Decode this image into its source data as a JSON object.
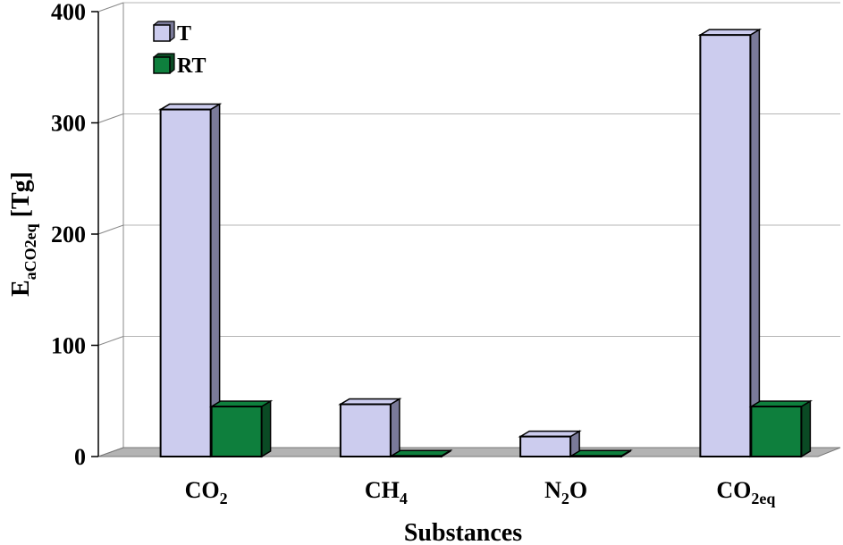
{
  "chart_data": {
    "type": "bar",
    "categories": [
      {
        "main": "CO",
        "sub": "2",
        "tail": ""
      },
      {
        "main": "CH",
        "sub": "4",
        "tail": ""
      },
      {
        "main": "N",
        "sub": "2",
        "tail": "O"
      },
      {
        "main": "CO",
        "sub": "2eq",
        "tail": ""
      }
    ],
    "series": [
      {
        "name": "T",
        "color": "#ccccee",
        "side_color": "#7a7a99",
        "values": [
          312,
          47,
          18,
          379
        ]
      },
      {
        "name": "RT",
        "color": "#0e7f3d",
        "side_color": "#0a4a24",
        "values": [
          45,
          0.6,
          0.6,
          45
        ]
      }
    ],
    "xlabel": "Substances",
    "ylabel": {
      "main": "E",
      "sub": "aCO2eq",
      "tail": " [Tg]"
    },
    "ylim": [
      0,
      400
    ],
    "yticks": [
      0,
      100,
      200,
      300,
      400
    ],
    "grid": true,
    "legend_position": "top-left"
  }
}
